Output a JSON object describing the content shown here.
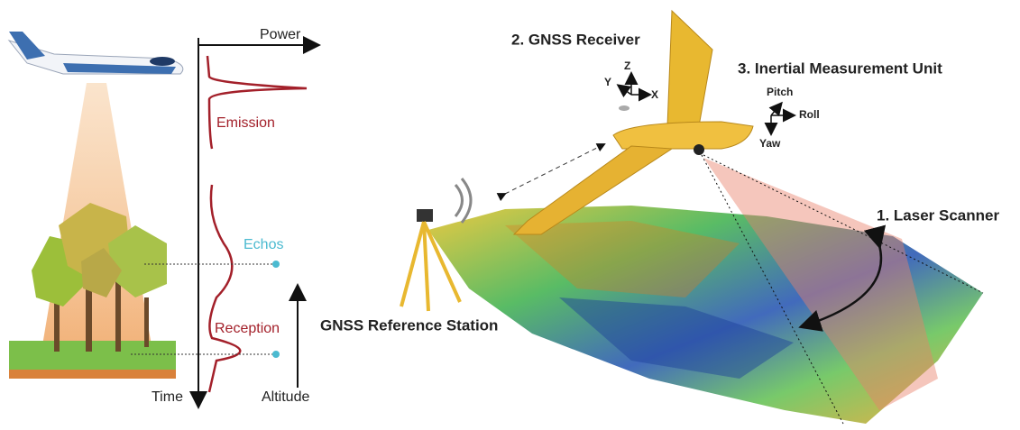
{
  "left_panel": {
    "axes": {
      "power": "Power",
      "time": "Time",
      "altitude": "Altitude"
    },
    "labels": {
      "emission": "Emission",
      "echos": "Echos",
      "reception": "Reception"
    }
  },
  "right_panel": {
    "components": {
      "laser_scanner": "1. Laser Scanner",
      "gnss_receiver": "2. GNSS Receiver",
      "imu": "3. Inertial Measurement Unit",
      "reference_station": "GNSS Reference Station"
    },
    "frame_axes": {
      "z": "Z",
      "y": "Y",
      "x": "X"
    },
    "attitude": {
      "pitch": "Pitch",
      "roll": "Roll",
      "yaw": "Yaw"
    }
  }
}
